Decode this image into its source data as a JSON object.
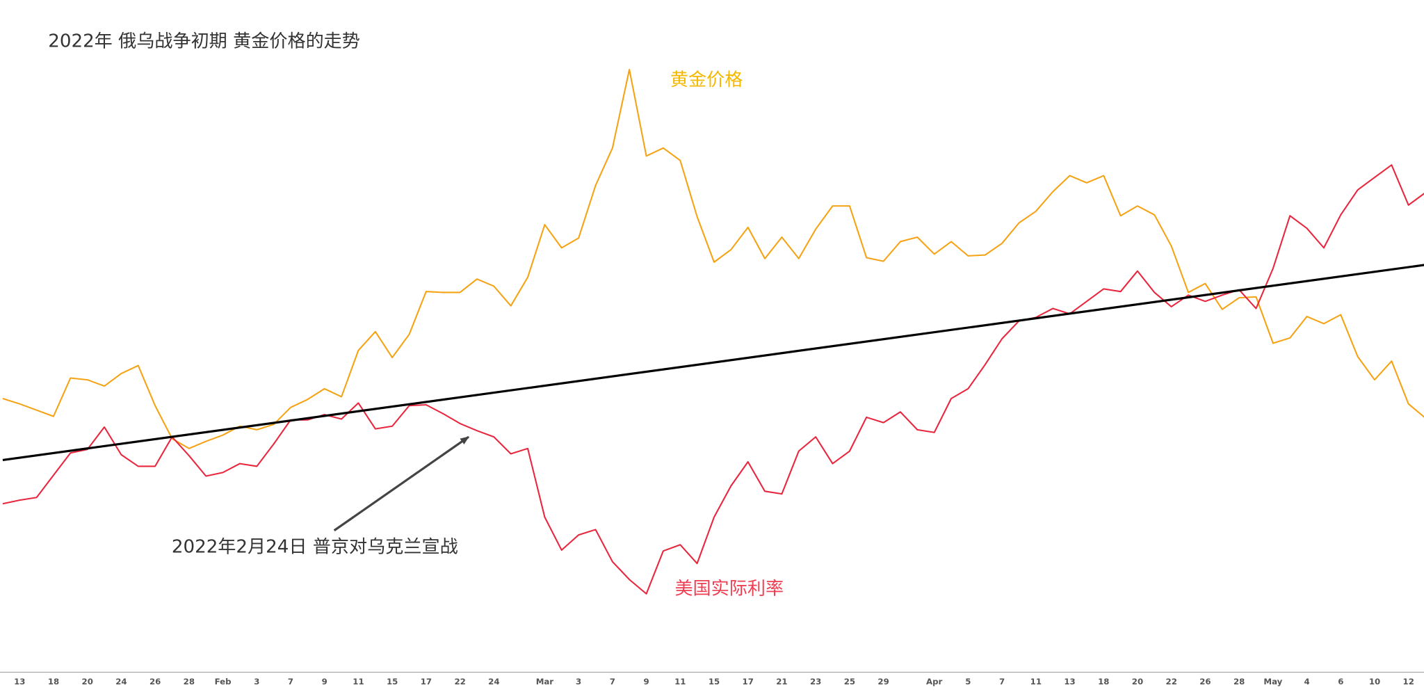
{
  "chart_data": {
    "type": "line",
    "title": "2022年 俄乌战争初期 黄金价格的走势",
    "annotation": "2022年2月24日 普京对乌克兰宣战",
    "categories": [
      null,
      "13",
      null,
      "18",
      null,
      "20",
      null,
      "24",
      null,
      "26",
      null,
      "28",
      null,
      "Feb",
      null,
      "3",
      null,
      "7",
      null,
      "9",
      null,
      "11",
      null,
      "15",
      null,
      "17",
      null,
      "22",
      null,
      "24",
      null,
      null,
      "Mar",
      null,
      "3",
      null,
      "7",
      null,
      "9",
      null,
      "11",
      null,
      "15",
      null,
      "17",
      null,
      "21",
      null,
      "23",
      null,
      "25",
      null,
      "29",
      null,
      null,
      "Apr",
      null,
      "5",
      null,
      "7",
      null,
      "11",
      null,
      "13",
      null,
      "18",
      null,
      "20",
      null,
      "22",
      null,
      "26",
      null,
      "28",
      null,
      "May",
      null,
      "4",
      null,
      "6",
      null,
      "10",
      null,
      "12",
      null
    ],
    "ylim": [
      0,
      784
    ],
    "series": [
      {
        "name": "黄金价格",
        "color": "#f5a314",
        "label_color": "#f5b800",
        "values": [
          337,
          331,
          324,
          317,
          360,
          358,
          351,
          365,
          374,
          329,
          292,
          281,
          289,
          296,
          306,
          302,
          308,
          327,
          336,
          348,
          339,
          391,
          412,
          383,
          409,
          457,
          456,
          456,
          471,
          463,
          441,
          473,
          532,
          506,
          517,
          576,
          618,
          706,
          609,
          618,
          604,
          541,
          490,
          504,
          529,
          494,
          518,
          494,
          527,
          553,
          553,
          495,
          491,
          513,
          518,
          499,
          513,
          497,
          498,
          511,
          534,
          547,
          569,
          587,
          579,
          587,
          542,
          553,
          543,
          508,
          456,
          466,
          437,
          450,
          451,
          399,
          405,
          429,
          421,
          431,
          384,
          358,
          379,
          331,
          315
        ]
      },
      {
        "name": "美国实际利率",
        "color": "#e8273f",
        "label_color": "#ef3e52",
        "values": [
          219,
          223,
          226,
          251,
          276,
          280,
          305,
          274,
          261,
          261,
          294,
          273,
          250,
          254,
          264,
          261,
          286,
          313,
          313,
          319,
          314,
          332,
          303,
          306,
          329,
          330,
          320,
          309,
          301,
          294,
          275,
          281,
          204,
          167,
          184,
          190,
          154,
          134,
          118,
          166,
          173,
          152,
          204,
          239,
          266,
          233,
          230,
          278,
          294,
          264,
          278,
          316,
          310,
          322,
          302,
          299,
          337,
          348,
          375,
          404,
          424,
          428,
          438,
          432,
          446,
          460,
          457,
          480,
          456,
          440,
          453,
          446,
          453,
          459,
          438,
          483,
          542,
          528,
          506,
          543,
          571,
          585,
          599,
          554,
          568
        ]
      }
    ],
    "trend": {
      "color": "#000000",
      "values": [
        268,
        487
      ]
    }
  }
}
